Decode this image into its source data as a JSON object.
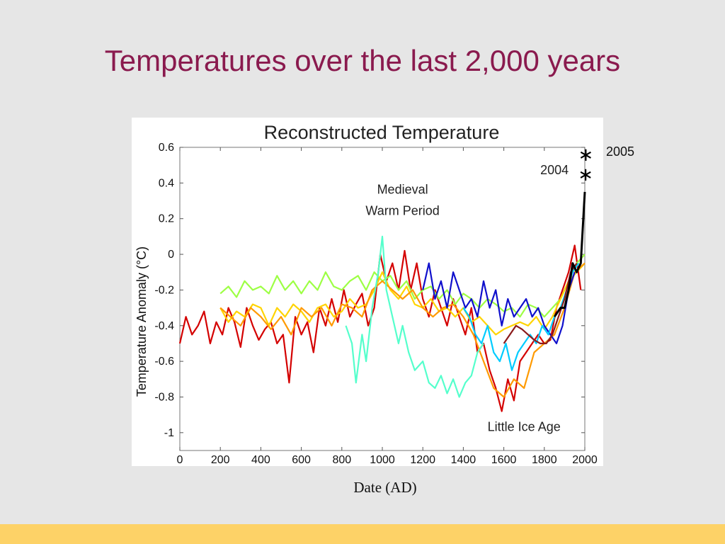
{
  "slide": {
    "title": "Temperatures over the last 2,000 years",
    "date_label": "Date (AD)",
    "label_2005": "2005",
    "accent_color": "#8a1a4e",
    "footer_color": "#fdd267"
  },
  "chart_data": {
    "type": "line",
    "title": "Reconstructed Temperature",
    "xlabel": "",
    "ylabel": "Temperature Anomaly (°C)",
    "xlim": [
      0,
      2000
    ],
    "ylim": [
      -1.1,
      0.6
    ],
    "xticks": [
      "0",
      "200",
      "400",
      "600",
      "800",
      "1000",
      "1200",
      "1400",
      "1600",
      "1800",
      "2000"
    ],
    "yticks": [
      "0.6",
      "0.4",
      "0.2",
      "0",
      "-0.2",
      "-0.4",
      "-0.6",
      "-0.8",
      "-1"
    ],
    "grid": false,
    "annotations": [
      {
        "text": "Medieval",
        "x": 1100,
        "y": 0.34
      },
      {
        "text": "Warm Period",
        "x": 1100,
        "y": 0.22
      },
      {
        "text": "Little Ice Age",
        "x": 1700,
        "y": -0.99
      },
      {
        "text": "2004",
        "x": 1920,
        "y": 0.45
      }
    ],
    "markers": [
      {
        "label": "2005",
        "x": 2005,
        "y": 0.56
      },
      {
        "label": "2004",
        "x": 2004,
        "y": 0.45
      }
    ],
    "series": [
      {
        "color": "#d40000",
        "x": [
          0,
          30,
          60,
          90,
          120,
          150,
          180,
          210,
          240,
          270,
          300,
          330,
          360,
          390,
          420,
          450,
          480,
          510,
          540,
          570,
          600,
          630,
          660,
          690,
          720,
          750,
          780,
          810,
          840,
          870,
          900,
          930,
          960,
          990,
          1020,
          1050,
          1080,
          1110,
          1140,
          1170,
          1200,
          1230,
          1260,
          1290,
          1320,
          1350,
          1380,
          1410,
          1440,
          1470,
          1500,
          1530,
          1560,
          1590,
          1620,
          1650,
          1680,
          1710,
          1740,
          1770,
          1800,
          1830,
          1860,
          1890,
          1920,
          1950,
          1980
        ],
        "values": [
          -0.5,
          -0.35,
          -0.45,
          -0.4,
          -0.32,
          -0.5,
          -0.38,
          -0.45,
          -0.3,
          -0.38,
          -0.52,
          -0.3,
          -0.4,
          -0.48,
          -0.42,
          -0.38,
          -0.5,
          -0.45,
          -0.72,
          -0.35,
          -0.45,
          -0.38,
          -0.55,
          -0.3,
          -0.4,
          -0.25,
          -0.38,
          -0.2,
          -0.35,
          -0.28,
          -0.22,
          -0.4,
          -0.3,
          0.0,
          -0.15,
          -0.05,
          -0.2,
          0.02,
          -0.2,
          -0.05,
          -0.25,
          -0.35,
          -0.2,
          -0.3,
          -0.4,
          -0.25,
          -0.35,
          -0.45,
          -0.3,
          -0.55,
          -0.5,
          -0.65,
          -0.75,
          -0.88,
          -0.7,
          -0.82,
          -0.6,
          -0.55,
          -0.5,
          -0.45,
          -0.5,
          -0.48,
          -0.3,
          -0.2,
          -0.1,
          0.05,
          -0.2
        ]
      },
      {
        "color": "#9dff44",
        "x": [
          200,
          240,
          280,
          320,
          360,
          400,
          440,
          480,
          520,
          560,
          600,
          640,
          680,
          720,
          760,
          800,
          840,
          880,
          920,
          960,
          1000,
          1040,
          1080,
          1120,
          1160,
          1200,
          1240,
          1280,
          1320,
          1360,
          1400,
          1440,
          1480,
          1520,
          1560,
          1600,
          1640,
          1680,
          1720,
          1760,
          1800,
          1840,
          1880,
          1920,
          1960,
          2000
        ],
        "values": [
          -0.22,
          -0.18,
          -0.24,
          -0.15,
          -0.2,
          -0.18,
          -0.22,
          -0.12,
          -0.2,
          -0.15,
          -0.22,
          -0.15,
          -0.2,
          -0.1,
          -0.18,
          -0.2,
          -0.15,
          -0.12,
          -0.2,
          -0.1,
          -0.15,
          -0.12,
          -0.2,
          -0.15,
          -0.25,
          -0.2,
          -0.18,
          -0.25,
          -0.2,
          -0.28,
          -0.22,
          -0.25,
          -0.3,
          -0.25,
          -0.28,
          -0.32,
          -0.3,
          -0.35,
          -0.28,
          -0.3,
          -0.35,
          -0.3,
          -0.25,
          -0.15,
          -0.05,
          0.0
        ]
      },
      {
        "color": "#ffd400",
        "x": [
          200,
          240,
          280,
          320,
          360,
          400,
          440,
          480,
          520,
          560,
          600,
          640,
          680,
          720,
          760,
          800,
          840,
          880,
          920,
          960,
          1000,
          1040,
          1080,
          1120,
          1160,
          1200,
          1240,
          1280,
          1320,
          1360,
          1400,
          1440,
          1480,
          1520,
          1560,
          1600,
          1640,
          1680,
          1720,
          1760,
          1800,
          1840,
          1880,
          1920,
          1960,
          2000
        ],
        "values": [
          -0.3,
          -0.38,
          -0.32,
          -0.35,
          -0.28,
          -0.3,
          -0.4,
          -0.3,
          -0.35,
          -0.28,
          -0.32,
          -0.38,
          -0.3,
          -0.28,
          -0.35,
          -0.32,
          -0.25,
          -0.3,
          -0.28,
          -0.2,
          -0.1,
          -0.2,
          -0.25,
          -0.18,
          -0.28,
          -0.3,
          -0.25,
          -0.32,
          -0.3,
          -0.35,
          -0.3,
          -0.38,
          -0.35,
          -0.4,
          -0.45,
          -0.42,
          -0.4,
          -0.38,
          -0.4,
          -0.35,
          -0.42,
          -0.35,
          -0.25,
          -0.15,
          -0.1,
          -0.05
        ]
      },
      {
        "color": "#ff9a00",
        "x": [
          200,
          250,
          300,
          350,
          400,
          450,
          500,
          550,
          600,
          650,
          700,
          750,
          800,
          850,
          900,
          950,
          1000,
          1050,
          1100,
          1150,
          1200,
          1250,
          1300,
          1350,
          1400,
          1450,
          1500,
          1550,
          1600,
          1650,
          1700,
          1750,
          1800,
          1850,
          1900,
          1950,
          2000
        ],
        "values": [
          -0.3,
          -0.35,
          -0.4,
          -0.3,
          -0.35,
          -0.42,
          -0.35,
          -0.45,
          -0.3,
          -0.35,
          -0.3,
          -0.4,
          -0.28,
          -0.3,
          -0.35,
          -0.2,
          -0.15,
          -0.2,
          -0.25,
          -0.2,
          -0.3,
          -0.35,
          -0.3,
          -0.28,
          -0.35,
          -0.45,
          -0.6,
          -0.75,
          -0.8,
          -0.7,
          -0.75,
          -0.55,
          -0.5,
          -0.45,
          -0.3,
          -0.1,
          -0.05
        ]
      },
      {
        "color": "#55ffcc",
        "x": [
          820,
          850,
          870,
          900,
          920,
          950,
          980,
          1000,
          1020,
          1050,
          1080,
          1100,
          1130,
          1160,
          1200,
          1230,
          1260,
          1290,
          1320,
          1350,
          1380,
          1410,
          1440,
          1470,
          1500
        ],
        "values": [
          -0.4,
          -0.5,
          -0.72,
          -0.45,
          -0.6,
          -0.3,
          -0.1,
          0.1,
          -0.2,
          -0.35,
          -0.5,
          -0.4,
          -0.55,
          -0.65,
          -0.6,
          -0.72,
          -0.75,
          -0.68,
          -0.78,
          -0.7,
          -0.8,
          -0.72,
          -0.68,
          -0.55,
          -0.5
        ]
      },
      {
        "color": "#1010cc",
        "x": [
          1200,
          1230,
          1260,
          1290,
          1320,
          1350,
          1380,
          1410,
          1440,
          1470,
          1500,
          1530,
          1560,
          1590,
          1620,
          1650,
          1680,
          1710,
          1740,
          1770,
          1800,
          1830,
          1860,
          1890,
          1920,
          1950
        ],
        "values": [
          -0.2,
          -0.05,
          -0.25,
          -0.15,
          -0.3,
          -0.1,
          -0.2,
          -0.3,
          -0.25,
          -0.35,
          -0.15,
          -0.3,
          -0.2,
          -0.4,
          -0.25,
          -0.35,
          -0.3,
          -0.25,
          -0.35,
          -0.3,
          -0.4,
          -0.45,
          -0.5,
          -0.4,
          -0.2,
          -0.1
        ]
      },
      {
        "color": "#00ccff",
        "x": [
          1400,
          1430,
          1460,
          1490,
          1520,
          1550,
          1580,
          1610,
          1640,
          1670,
          1700,
          1730,
          1760,
          1790,
          1820,
          1850,
          1880,
          1910,
          1940,
          1970
        ],
        "values": [
          -0.3,
          -0.35,
          -0.45,
          -0.5,
          -0.4,
          -0.55,
          -0.6,
          -0.5,
          -0.65,
          -0.55,
          -0.5,
          -0.45,
          -0.5,
          -0.4,
          -0.45,
          -0.35,
          -0.3,
          -0.2,
          -0.1,
          -0.05
        ]
      },
      {
        "color": "#8b1a1a",
        "x": [
          1600,
          1630,
          1660,
          1690,
          1720,
          1750,
          1780,
          1810,
          1840,
          1870,
          1900,
          1930,
          1960
        ],
        "values": [
          -0.5,
          -0.45,
          -0.4,
          -0.42,
          -0.45,
          -0.48,
          -0.5,
          -0.5,
          -0.45,
          -0.35,
          -0.25,
          -0.1,
          -0.05
        ]
      },
      {
        "color": "#000000",
        "x": [
          1850,
          1880,
          1900,
          1920,
          1940,
          1960,
          1980,
          2000
        ],
        "values": [
          -0.35,
          -0.3,
          -0.3,
          -0.2,
          -0.05,
          -0.1,
          -0.05,
          0.35
        ]
      }
    ]
  }
}
